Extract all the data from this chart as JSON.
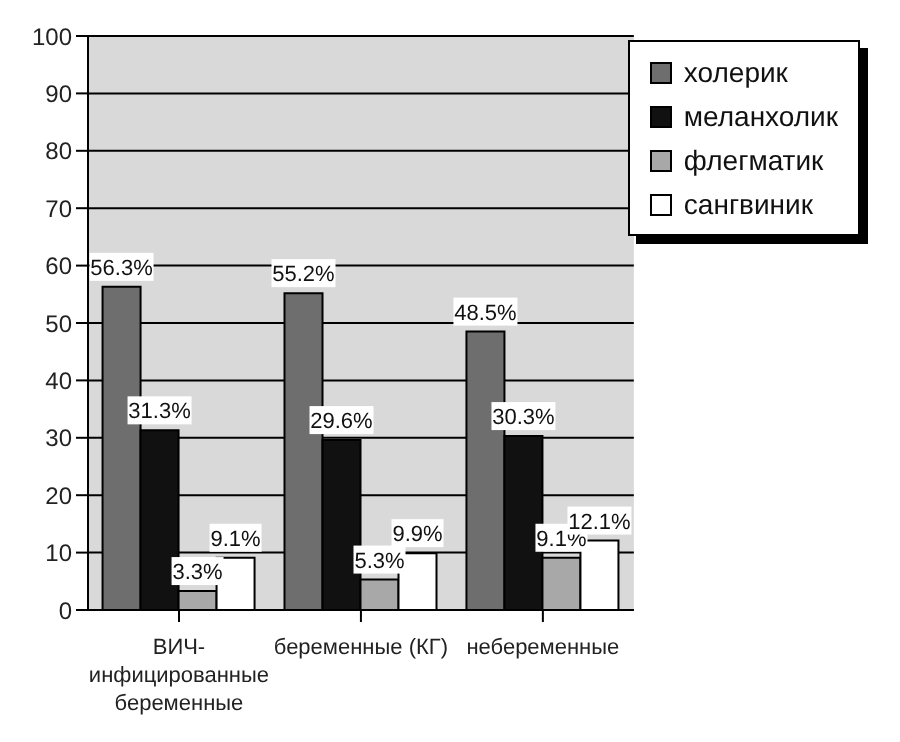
{
  "chart_data": {
    "type": "bar",
    "categories": [
      "ВИЧ-инфицированные беременные",
      "беременные (КГ)",
      "небеременные"
    ],
    "series": [
      {
        "name": "холерик",
        "color": "#6e6e6e",
        "values": [
          56.3,
          55.2,
          48.5
        ],
        "value_labels": [
          "56.3%",
          "55.2%",
          "48.5%"
        ]
      },
      {
        "name": "меланхолик",
        "color": "#111111",
        "values": [
          31.3,
          29.6,
          30.3
        ],
        "value_labels": [
          "31.3%",
          "29.6%",
          "30.3%"
        ]
      },
      {
        "name": "флегматик",
        "color": "#a8a8a8",
        "values": [
          3.3,
          5.3,
          9.1
        ],
        "value_labels": [
          "3.3%",
          "5.3%",
          "9.1%"
        ]
      },
      {
        "name": "сангвиник",
        "color": "#ffffff",
        "values": [
          9.1,
          9.9,
          12.1
        ],
        "value_labels": [
          "9.1%",
          "9.9%",
          "12.1%"
        ]
      }
    ],
    "ylim": [
      0,
      100
    ],
    "yticks": [
      0,
      10,
      20,
      30,
      40,
      50,
      60,
      70,
      80,
      90,
      100
    ],
    "grid": "y",
    "legend": "top right"
  }
}
